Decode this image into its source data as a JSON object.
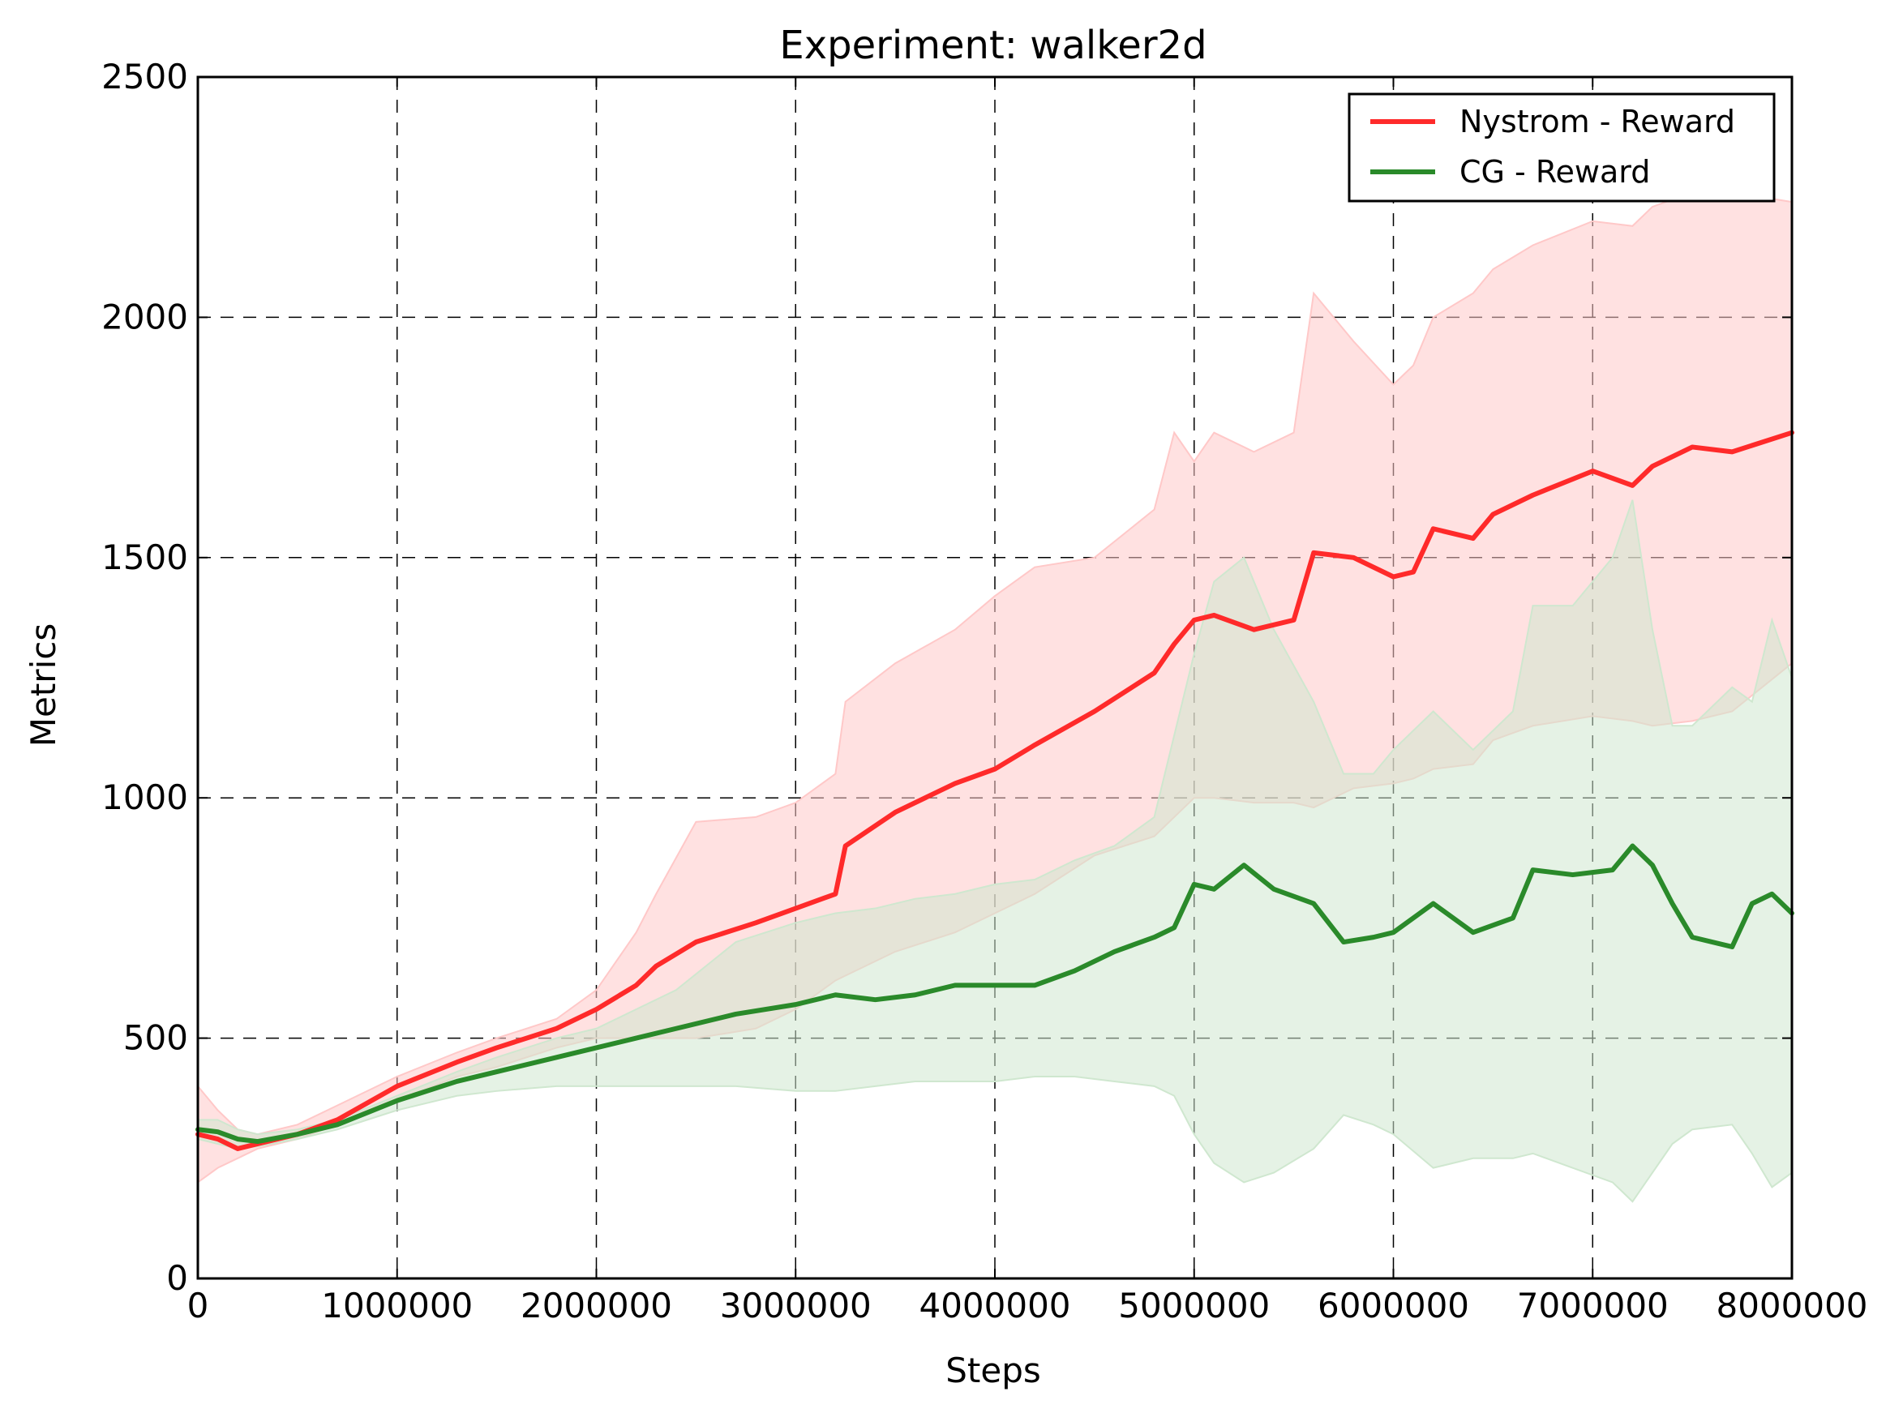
{
  "chart_data": {
    "type": "line",
    "title": "Experiment: walker2d",
    "xlabel": "Steps",
    "ylabel": "Metrics",
    "xlim": [
      0,
      8000000
    ],
    "ylim": [
      0,
      2500
    ],
    "xticks": [
      0,
      1000000,
      2000000,
      3000000,
      4000000,
      5000000,
      6000000,
      7000000,
      8000000
    ],
    "xtick_labels": [
      "0",
      "1000000",
      "2000000",
      "3000000",
      "4000000",
      "5000000",
      "6000000",
      "7000000",
      "8000000"
    ],
    "yticks": [
      0,
      500,
      1000,
      1500,
      2000,
      2500
    ],
    "ytick_labels": [
      "0",
      "500",
      "1000",
      "1500",
      "2000",
      "2500"
    ],
    "grid": true,
    "legend_position": "top-right",
    "series": [
      {
        "name": "Nystrom - Reward",
        "color": "#ff2a2a",
        "band_color": "#ffc8c8",
        "x": [
          0,
          100000,
          200000,
          300000,
          500000,
          700000,
          1000000,
          1300000,
          1500000,
          1800000,
          2000000,
          2200000,
          2300000,
          2500000,
          2800000,
          3000000,
          3200000,
          3250000,
          3500000,
          3800000,
          4000000,
          4200000,
          4500000,
          4800000,
          4900000,
          5000000,
          5100000,
          5300000,
          5500000,
          5600000,
          5800000,
          6000000,
          6100000,
          6200000,
          6400000,
          6500000,
          6700000,
          7000000,
          7200000,
          7300000,
          7500000,
          7700000,
          8000000
        ],
        "y": [
          300,
          290,
          270,
          280,
          300,
          330,
          400,
          450,
          480,
          520,
          560,
          610,
          650,
          700,
          740,
          770,
          800,
          900,
          970,
          1030,
          1060,
          1110,
          1180,
          1260,
          1320,
          1370,
          1380,
          1350,
          1370,
          1510,
          1500,
          1460,
          1470,
          1560,
          1540,
          1590,
          1630,
          1680,
          1650,
          1690,
          1730,
          1720,
          1760
        ],
        "lower": [
          200,
          230,
          250,
          270,
          290,
          320,
          370,
          420,
          440,
          480,
          500,
          500,
          500,
          500,
          520,
          560,
          620,
          630,
          680,
          720,
          760,
          800,
          880,
          920,
          960,
          1000,
          1000,
          990,
          990,
          980,
          1020,
          1030,
          1040,
          1060,
          1070,
          1120,
          1150,
          1170,
          1160,
          1150,
          1160,
          1180,
          1280
        ],
        "upper": [
          400,
          350,
          310,
          300,
          320,
          360,
          420,
          470,
          500,
          540,
          600,
          720,
          800,
          950,
          960,
          990,
          1050,
          1200,
          1280,
          1350,
          1420,
          1480,
          1500,
          1600,
          1760,
          1700,
          1760,
          1720,
          1760,
          2050,
          1950,
          1860,
          1900,
          2000,
          2050,
          2100,
          2150,
          2200,
          2190,
          2230,
          2260,
          2260,
          2240
        ]
      },
      {
        "name": "CG - Reward",
        "color": "#2a8a2a",
        "band_color": "#cfe7cf",
        "x": [
          0,
          100000,
          200000,
          300000,
          500000,
          700000,
          1000000,
          1300000,
          1500000,
          1800000,
          2000000,
          2200000,
          2400000,
          2700000,
          3000000,
          3200000,
          3400000,
          3600000,
          3800000,
          4000000,
          4200000,
          4400000,
          4600000,
          4800000,
          4900000,
          5000000,
          5100000,
          5250000,
          5400000,
          5600000,
          5750000,
          5900000,
          6000000,
          6200000,
          6400000,
          6600000,
          6700000,
          6900000,
          7100000,
          7200000,
          7300000,
          7400000,
          7500000,
          7700000,
          7800000,
          7900000,
          8000000
        ],
        "y": [
          310,
          305,
          290,
          285,
          300,
          320,
          370,
          410,
          430,
          460,
          480,
          500,
          520,
          550,
          570,
          590,
          580,
          590,
          610,
          610,
          610,
          640,
          680,
          710,
          730,
          820,
          810,
          860,
          810,
          780,
          700,
          710,
          720,
          780,
          720,
          750,
          850,
          840,
          850,
          900,
          860,
          780,
          710,
          690,
          780,
          800,
          760
        ],
        "lower": [
          290,
          280,
          270,
          275,
          290,
          310,
          350,
          380,
          390,
          400,
          400,
          400,
          400,
          400,
          390,
          390,
          400,
          410,
          410,
          410,
          420,
          420,
          410,
          400,
          380,
          300,
          240,
          200,
          220,
          270,
          340,
          320,
          300,
          230,
          250,
          250,
          260,
          230,
          200,
          160,
          220,
          280,
          310,
          320,
          260,
          190,
          220
        ],
        "upper": [
          330,
          330,
          310,
          300,
          310,
          330,
          380,
          430,
          460,
          500,
          520,
          560,
          600,
          700,
          740,
          760,
          770,
          790,
          800,
          820,
          830,
          870,
          900,
          960,
          1130,
          1300,
          1450,
          1500,
          1350,
          1200,
          1050,
          1050,
          1100,
          1180,
          1100,
          1180,
          1400,
          1400,
          1500,
          1620,
          1350,
          1150,
          1150,
          1230,
          1200,
          1370,
          1250
        ]
      }
    ]
  }
}
